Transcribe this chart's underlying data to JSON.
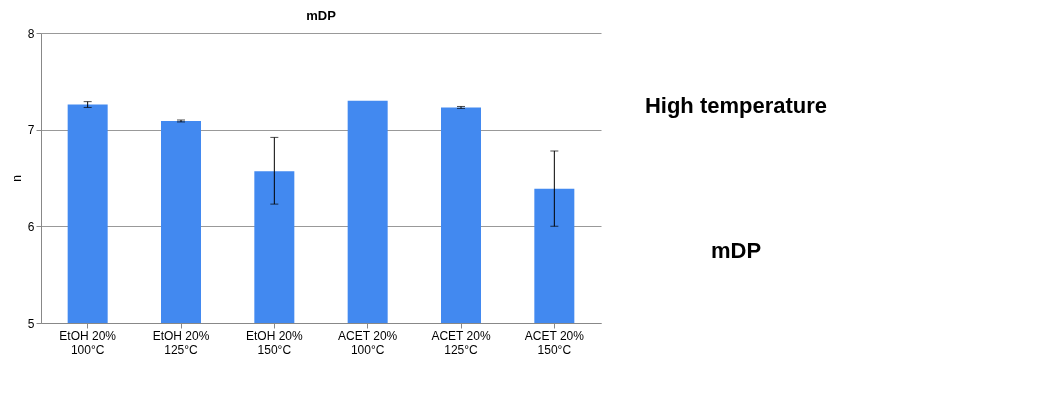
{
  "chart_data": {
    "type": "bar",
    "title": "mDP",
    "ylabel": "n",
    "categories": [
      "EtOH 20%\n100°C",
      "EtOH 20%\n125°C",
      "EtOH 20%\n150°C",
      "ACET 20%\n100°C",
      "ACET 20%\n125°C",
      "ACET 20%\n150°C"
    ],
    "values": [
      7.26,
      7.09,
      6.57,
      7.3,
      7.23,
      6.39
    ],
    "errors": [
      [
        7.23,
        7.29
      ],
      [
        7.08,
        7.1
      ],
      [
        6.23,
        6.92
      ],
      null,
      [
        7.22,
        7.24
      ],
      [
        6.0,
        6.78
      ]
    ],
    "color": "#4289f0",
    "ylim": [
      5,
      8
    ],
    "yticks": [
      5,
      6,
      7,
      8
    ],
    "grid": "y",
    "annotations": [
      "High temperature",
      "mDP"
    ]
  }
}
